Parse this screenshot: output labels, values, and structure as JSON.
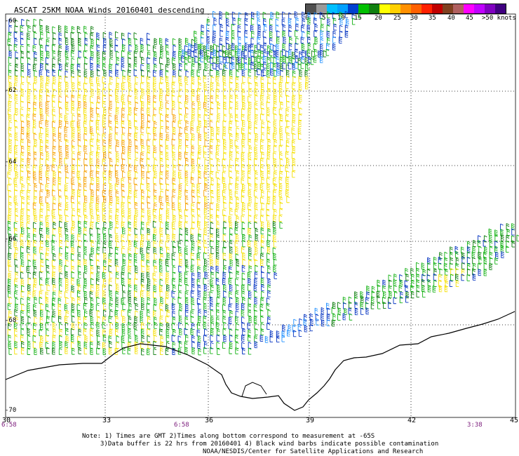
{
  "title": "ASCAT 25KM NOAA Winds 20160401 descending",
  "legend": {
    "colors": [
      "#505050",
      "#9a9a9a",
      "#00c0ff",
      "#00a0ff",
      "#0040d0",
      "#00c000",
      "#108010",
      "#ffff00",
      "#ffd000",
      "#ff9000",
      "#ff6000",
      "#ff2000",
      "#c00000",
      "#804020",
      "#b06060",
      "#ff00ff",
      "#c000ff",
      "#8000c0",
      "#400080"
    ],
    "labels": [
      "0",
      "5",
      "10",
      "15",
      "20",
      "25",
      "30",
      "35",
      "40",
      "45",
      ">50 knots"
    ]
  },
  "axes": {
    "latitude_labels": [
      "-60",
      "-62",
      "-64",
      "-66",
      "-68",
      "-70"
    ],
    "longitude_labels": [
      "30",
      "33",
      "36",
      "39",
      "42",
      "45"
    ]
  },
  "times": [
    "6:58",
    "6:58",
    "3:38"
  ],
  "note": {
    "line1": "Note: 1) Times are GMT 2)Times along bottom correspond to measurement at -65S",
    "line2": "3)Data buffer is 22 hrs from 20160401 4) Black wind barbs indicate possible contamination",
    "line3": "NOAA/NESDIS/Center for Satellite Applications and Research"
  },
  "wind_colors": {
    "yellow": "#f5e000",
    "orange": "#f5a000",
    "green": "#10b010",
    "dark_green": "#087a08",
    "blue": "#0030c0",
    "light_blue": "#2090ff"
  }
}
